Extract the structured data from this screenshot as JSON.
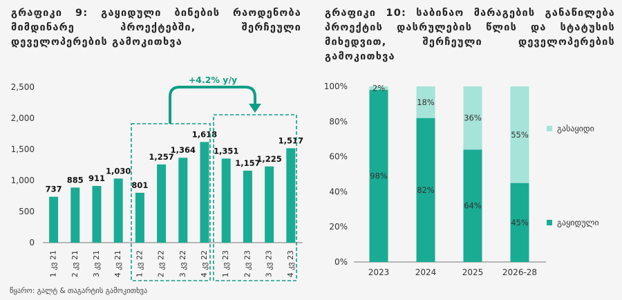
{
  "chart_data": [
    {
      "type": "bar",
      "title": "გრაფიკი 9: გაყიდული ბინების რაოდენობა მიმდინარე პროექტებში, შერჩეული დეველოპერების გამოკითხვა",
      "categories": [
        "1 კვ 21",
        "2 კვ 21",
        "3 კვ 21",
        "4 კვ 21",
        "1 კვ 22",
        "2 კვ 22",
        "3 კვ 22",
        "4 კვ 22",
        "1 კვ 23",
        "2 კვ 23",
        "3 კვ 23",
        "4 კვ 23"
      ],
      "values": [
        737,
        885,
        911,
        1030,
        801,
        1257,
        1364,
        1618,
        1351,
        1157,
        1225,
        1517
      ],
      "value_labels": [
        "737",
        "885",
        "911",
        "1,030",
        "801",
        "1,257",
        "1,364",
        "1,618",
        "1,351",
        "1,157",
        "1,225",
        "1,517"
      ],
      "yticks": [
        "0",
        "500",
        "1,000",
        "1,500",
        "2,000",
        "2,500"
      ],
      "ylim": [
        0,
        2500
      ],
      "annotation": "+4.2% y/y"
    },
    {
      "type": "bar",
      "stacked": true,
      "title": "გრაფიკი 10: საბინაო მარაგების განაწილება პროექტის დასრულების წლის და სტატუსის მიხედვით, შერჩეული დეველოპერების გამოკითხვა",
      "categories": [
        "2023",
        "2024",
        "2025",
        "2026-28"
      ],
      "series": [
        {
          "name": "გაყიდული",
          "values": [
            98,
            82,
            64,
            45
          ],
          "labels": [
            "98%",
            "82%",
            "64%",
            "45%"
          ]
        },
        {
          "name": "გასაყიდი",
          "values": [
            2,
            18,
            36,
            55
          ],
          "labels": [
            "2%",
            "18%",
            "36%",
            "55%"
          ]
        }
      ],
      "yticks": [
        "0%",
        "20%",
        "40%",
        "60%",
        "80%",
        "100%"
      ],
      "ylim": [
        0,
        100
      ]
    }
  ],
  "source": "წყარო: გალტ & თაგარტის გამოკითხვა",
  "colors": {
    "sold": "#1aab94",
    "unsold": "#a6e3d8",
    "accent": "#0f9e86"
  }
}
